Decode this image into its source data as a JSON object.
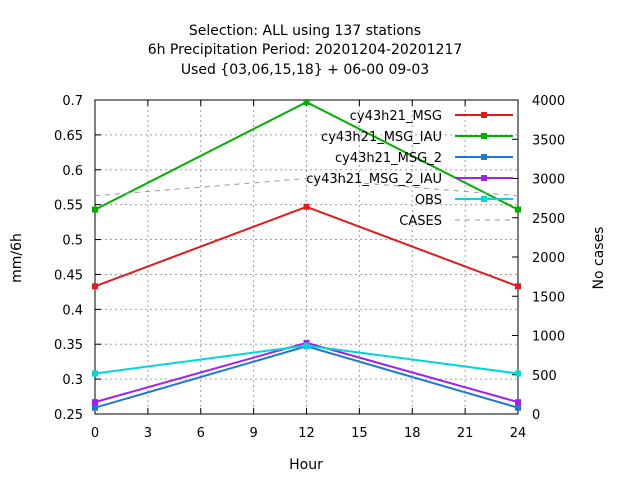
{
  "chart_data": {
    "type": "line",
    "title_lines": [
      "Selection: ALL using   137 stations",
      "6h Precipitation   Period: 20201204-20201217",
      "Used {03,06,15,18} + 06-00 09-03"
    ],
    "xlabel": "Hour",
    "ylabel": "mm/6h",
    "y2label": "No cases",
    "x": [
      0,
      12,
      24
    ],
    "xlim": [
      0,
      24
    ],
    "xticks": [
      0,
      3,
      6,
      9,
      12,
      15,
      18,
      21,
      24
    ],
    "ylim": [
      0.25,
      0.7
    ],
    "yticks": [
      "0.25",
      "0.3",
      "0.35",
      "0.4",
      "0.45",
      "0.5",
      "0.55",
      "0.6",
      "0.65",
      "0.7"
    ],
    "y2lim": [
      0,
      4000
    ],
    "y2ticks": [
      0,
      500,
      1000,
      1500,
      2000,
      2500,
      3000,
      3500,
      4000
    ],
    "grid": true,
    "legend_position": "top-right",
    "series": [
      {
        "name": "cy43h21_MSG",
        "color": "#e31a1c",
        "values": [
          0.433,
          0.547,
          0.433
        ],
        "axis": "y1",
        "style": "solid"
      },
      {
        "name": "cy43h21_MSG_IAU",
        "color": "#00b000",
        "values": [
          0.543,
          0.697,
          0.543
        ],
        "axis": "y1",
        "style": "solid"
      },
      {
        "name": "cy43h21_MSG_2",
        "color": "#1f78d4",
        "values": [
          0.259,
          0.347,
          0.259
        ],
        "axis": "y1",
        "style": "solid"
      },
      {
        "name": "cy43h21_MSG_2_IAU",
        "color": "#a020f0",
        "values": [
          0.267,
          0.352,
          0.267
        ],
        "axis": "y1",
        "style": "solid"
      },
      {
        "name": "OBS",
        "color": "#00d8d8",
        "values": [
          0.308,
          0.348,
          0.308
        ],
        "axis": "y1",
        "style": "solid"
      },
      {
        "name": "CASES",
        "color": "#999999",
        "values": [
          2780,
          3000,
          2780
        ],
        "axis": "y2",
        "style": "dashed"
      }
    ]
  }
}
